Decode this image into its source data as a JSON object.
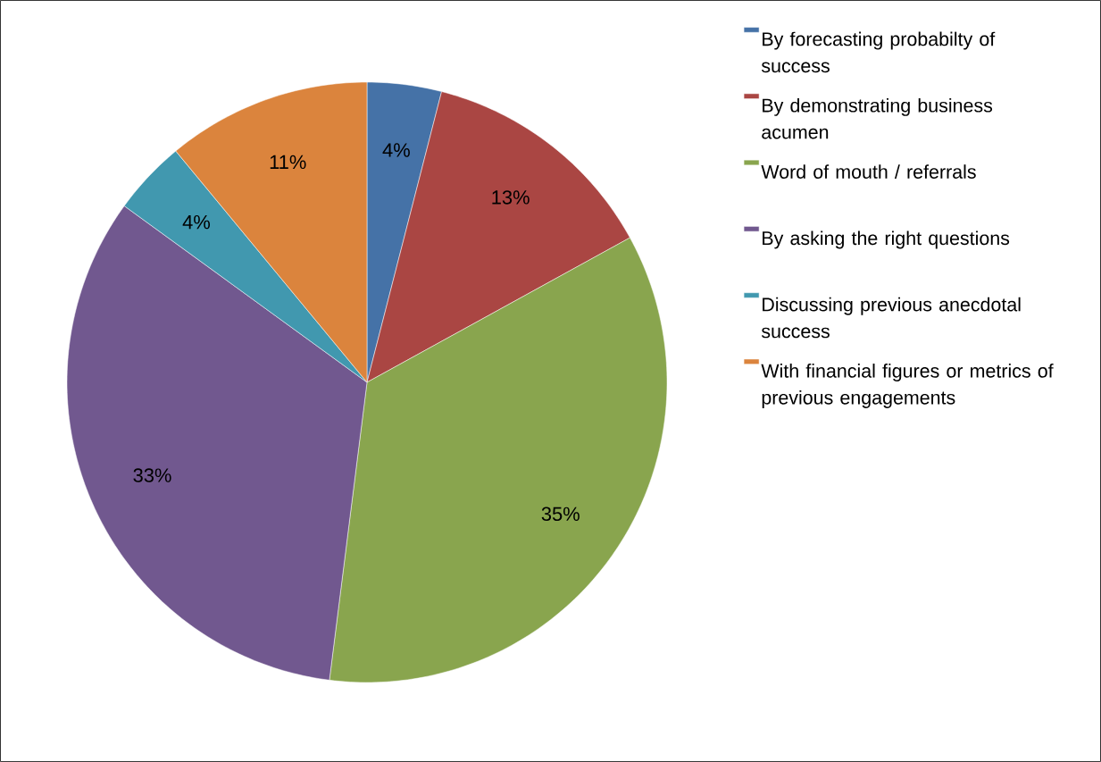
{
  "chart_data": {
    "type": "pie",
    "categories": [
      "By forecasting probabilty of success",
      "By demonstrating business acumen",
      "Word of mouth / referrals",
      "By asking the right questions",
      "Discussing previous anecdotal success",
      "With financial figures or metrics of previous engagements"
    ],
    "values": [
      4,
      13,
      35,
      33,
      4,
      11
    ],
    "colors": [
      "#4572a7",
      "#aa4643",
      "#89a54e",
      "#71588f",
      "#4198af",
      "#db843d"
    ],
    "value_labels": [
      "4%",
      "13%",
      "35%",
      "33%",
      "4%",
      "11%"
    ],
    "legend": "right"
  }
}
